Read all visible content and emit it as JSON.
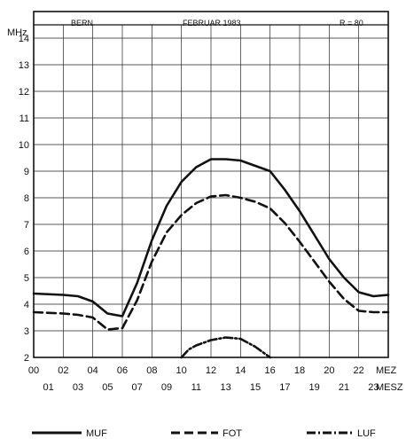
{
  "chart_data": {
    "type": "line",
    "header": {
      "left": "BERN",
      "center": "FEBRUAR 1983",
      "right": "R = 80"
    },
    "ylabel": "MHz",
    "ylim": [
      2,
      15
    ],
    "yticks": [
      2,
      3,
      4,
      5,
      6,
      7,
      8,
      9,
      10,
      11,
      12,
      13,
      14
    ],
    "xlim": [
      0,
      24
    ],
    "x_ticks_mez": [
      "00",
      "02",
      "04",
      "06",
      "08",
      "10",
      "12",
      "14",
      "16",
      "18",
      "20",
      "22"
    ],
    "x_ticks_mesz": [
      "01",
      "03",
      "05",
      "07",
      "09",
      "11",
      "13",
      "15",
      "17",
      "19",
      "21",
      "23"
    ],
    "x_unit_mez": "MEZ",
    "x_unit_mesz": "MESZ",
    "grid": true,
    "legend_position": "bottom",
    "series": [
      {
        "name": "MUF",
        "style": "solid",
        "x": [
          0,
          2,
          3,
          4,
          5,
          6,
          7,
          8,
          9,
          10,
          11,
          12,
          13,
          14,
          15,
          16,
          17,
          18,
          19,
          20,
          21,
          22,
          23,
          24
        ],
        "y": [
          4.4,
          4.35,
          4.3,
          4.1,
          3.65,
          3.55,
          4.8,
          6.4,
          7.7,
          8.6,
          9.15,
          9.45,
          9.45,
          9.4,
          9.2,
          9.0,
          8.3,
          7.5,
          6.6,
          5.7,
          5.0,
          4.45,
          4.3,
          4.35
        ]
      },
      {
        "name": "FOT",
        "style": "dashed",
        "x": [
          0,
          2,
          3,
          4,
          5,
          6,
          7,
          8,
          9,
          10,
          11,
          12,
          13,
          14,
          15,
          16,
          17,
          18,
          19,
          20,
          21,
          22,
          23,
          24
        ],
        "y": [
          3.7,
          3.65,
          3.6,
          3.5,
          3.05,
          3.1,
          4.15,
          5.6,
          6.7,
          7.35,
          7.8,
          8.05,
          8.1,
          8.0,
          7.85,
          7.6,
          7.05,
          6.35,
          5.6,
          4.85,
          4.2,
          3.75,
          3.7,
          3.7
        ]
      },
      {
        "name": "LUF",
        "style": "dashdot",
        "x": [
          10,
          10.5,
          11,
          12,
          13,
          14,
          15,
          15.5,
          16
        ],
        "y": [
          2.0,
          2.3,
          2.45,
          2.65,
          2.75,
          2.7,
          2.4,
          2.2,
          2.0
        ]
      }
    ]
  }
}
